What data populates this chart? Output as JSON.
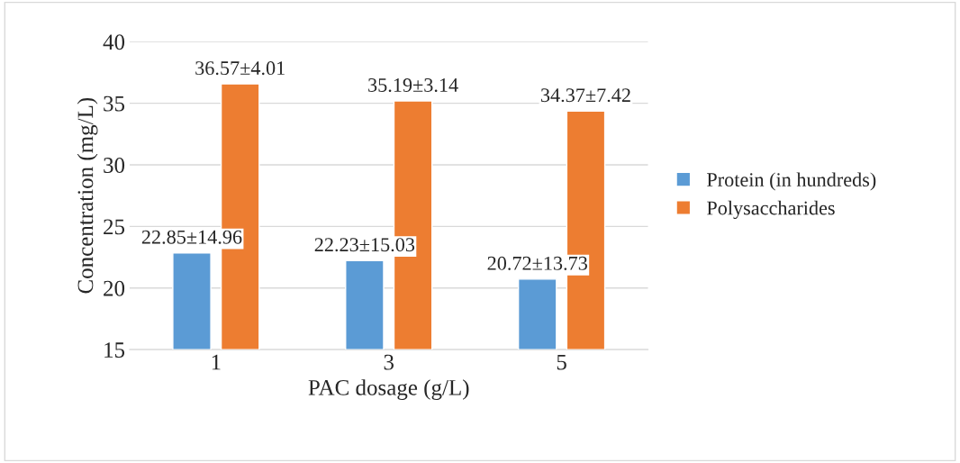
{
  "chart_data": {
    "type": "bar",
    "xlabel": "PAC dosage (g/L)",
    "ylabel": "Concentration (mg/L)",
    "categories": [
      "1",
      "3",
      "5"
    ],
    "series": [
      {
        "name": "Protein (in hundreds)",
        "color": "#5b9bd5",
        "values": [
          22.85,
          22.23,
          20.72
        ],
        "value_labels": [
          "22.85±14.96",
          "22.23±15.03",
          "20.72±13.73"
        ]
      },
      {
        "name": "Polysaccharides",
        "color": "#ed7d31",
        "values": [
          36.57,
          35.19,
          34.37
        ],
        "value_labels": [
          "36.57±4.01",
          "35.19±3.14",
          "34.37±7.42"
        ]
      }
    ],
    "ylim": [
      15,
      40
    ],
    "yticks": [
      15,
      20,
      25,
      30,
      35,
      40
    ],
    "grid": "y",
    "legend": "right"
  }
}
